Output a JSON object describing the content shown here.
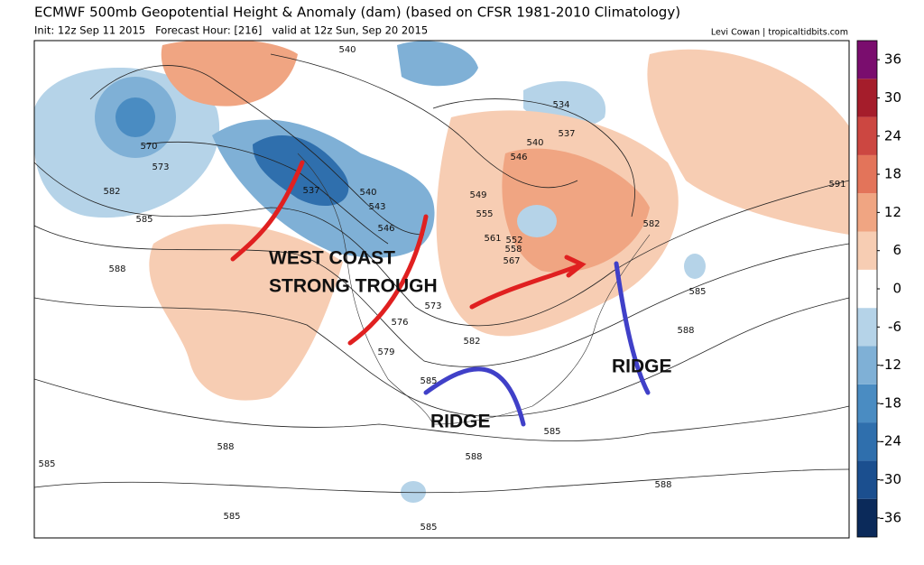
{
  "header": {
    "title": "ECMWF 500mb Geopotential Height & Anomaly (dam) (based on CFSR 1981-2010 Climatology)",
    "subtitle": "Init: 12z Sep 11 2015   Forecast Hour: [216]   valid at 12z Sun, Sep 20 2015",
    "credit": "Levi Cowan | tropicaltidbits.com"
  },
  "annotations": [
    "WEST COAST",
    "STRONG TROUGH",
    "RIDGE",
    "RIDGE"
  ],
  "contour_labels": [
    "540",
    "570",
    "573",
    "582",
    "585",
    "588",
    "537",
    "540",
    "543",
    "546",
    "534",
    "537",
    "540",
    "546",
    "549",
    "555",
    "561",
    "552",
    "558",
    "567",
    "573",
    "576",
    "579",
    "582",
    "585",
    "591",
    "582",
    "585",
    "588",
    "585",
    "588",
    "588",
    "585",
    "585",
    "585",
    "588"
  ],
  "colorbar": {
    "lim": [
      -39,
      39
    ],
    "ticks": [
      -36,
      -30,
      -24,
      -18,
      -12,
      -6,
      0,
      6,
      12,
      18,
      24,
      30,
      36
    ],
    "colors": [
      "#0b2a5a",
      "#1b4f8f",
      "#2f6fad",
      "#4a8cc2",
      "#7fb0d6",
      "#b5d3e8",
      "#ffffff",
      "#f7cdb3",
      "#f0a582",
      "#e3745a",
      "#cc4741",
      "#a51d2b",
      "#7a0d6e"
    ]
  }
}
